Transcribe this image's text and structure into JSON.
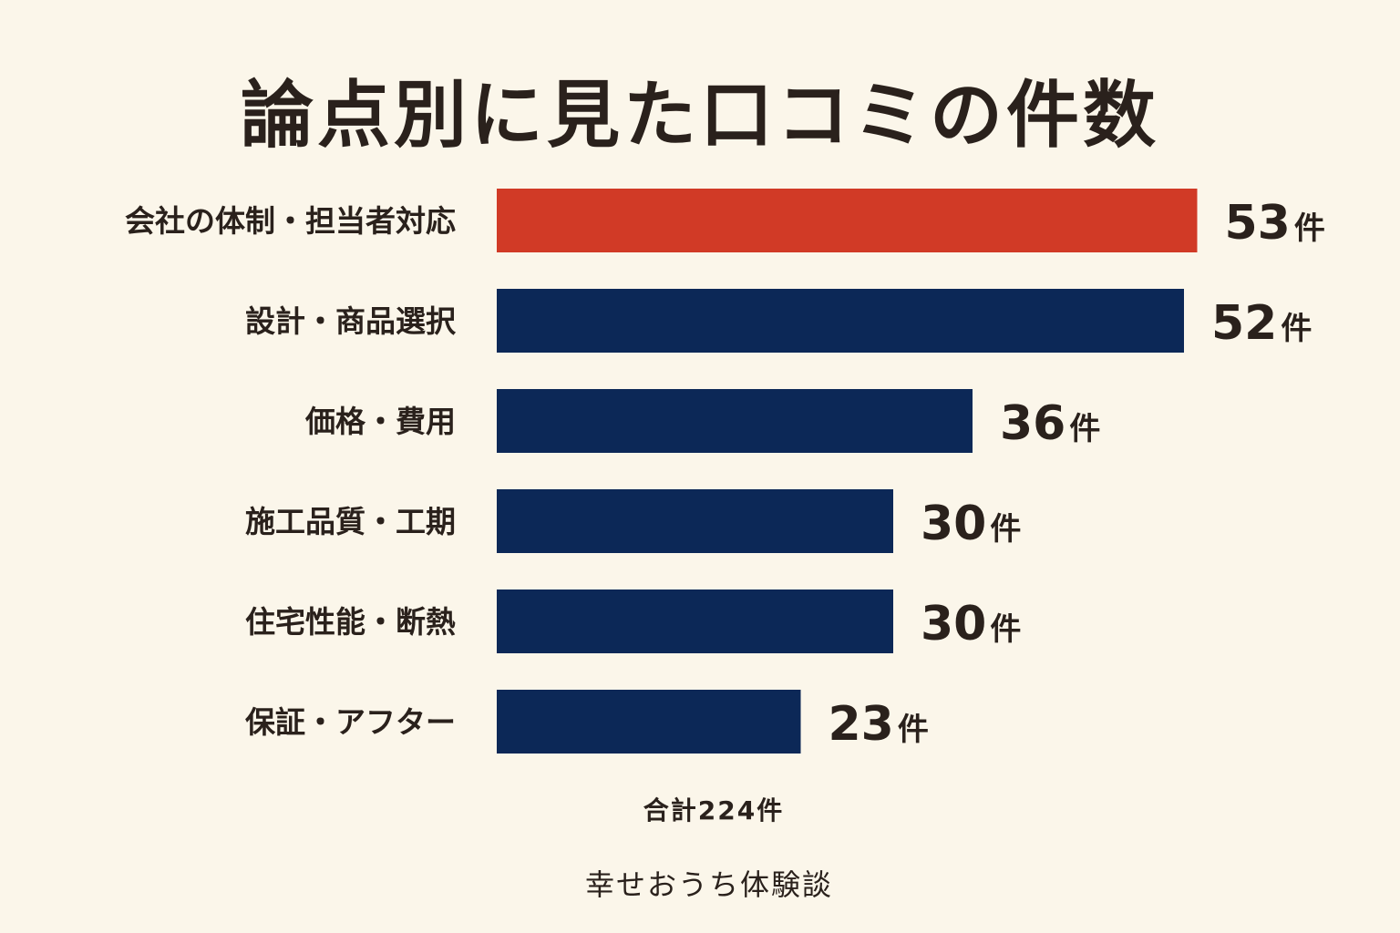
{
  "chart_data": {
    "type": "bar",
    "orientation": "horizontal",
    "title": "論点別に見た口コミの件数",
    "categories": [
      "会社の体制・担当者対応",
      "設計・商品選択",
      "価格・費用",
      "施工品質・工期",
      "住宅性能・断熱",
      "保証・アフター"
    ],
    "values": [
      53,
      52,
      36,
      30,
      30,
      23
    ],
    "unit": "件",
    "highlight_index": 0,
    "colors": {
      "highlight": "#d13a26",
      "default": "#0c2857"
    },
    "grid": false,
    "legend": "none"
  },
  "total_label": "合計224件",
  "source": "幸せおうち体験談"
}
